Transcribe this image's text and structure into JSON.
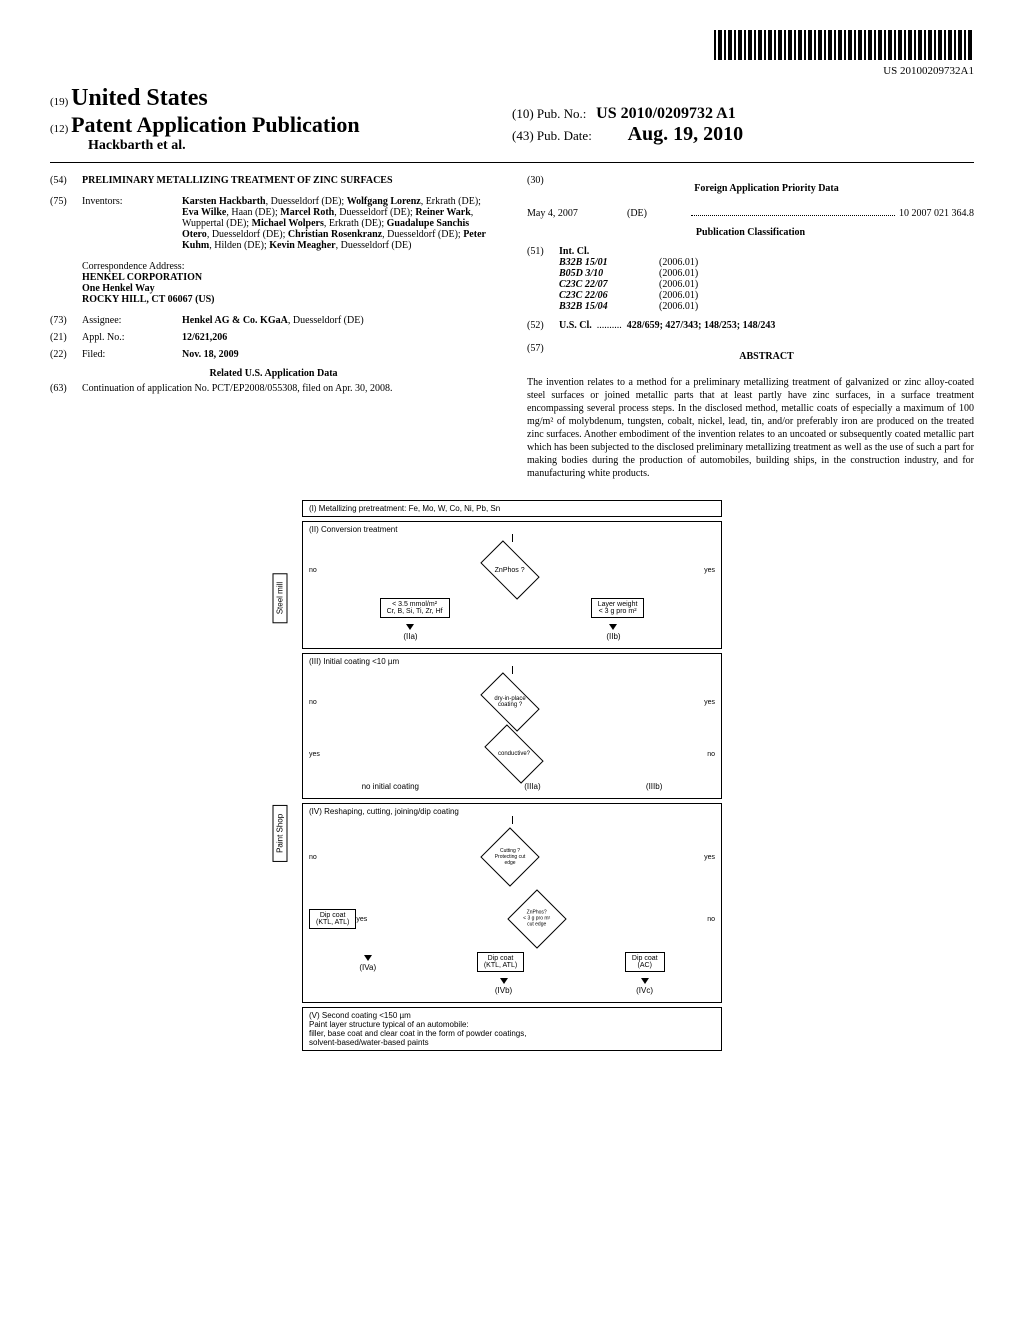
{
  "barcode_text": "US 20100209732A1",
  "country_code": "(19)",
  "country": "United States",
  "doc_code": "(12)",
  "doc_type": "Patent Application Publication",
  "author_line": "Hackbarth et al.",
  "pub_no_code": "(10)",
  "pub_no_label": "Pub. No.:",
  "pub_no": "US 2010/0209732 A1",
  "pub_date_code": "(43)",
  "pub_date_label": "Pub. Date:",
  "pub_date": "Aug. 19, 2010",
  "title_code": "(54)",
  "title": "PRELIMINARY METALLIZING TREATMENT OF ZINC SURFACES",
  "inventors_code": "(75)",
  "inventors_label": "Inventors:",
  "inventors": [
    {
      "name": "Karsten Hackbarth",
      "loc": "Duesseldorf (DE)"
    },
    {
      "name": "Wolfgang Lorenz",
      "loc": "Erkrath (DE)"
    },
    {
      "name": "Eva Wilke",
      "loc": "Haan (DE)"
    },
    {
      "name": "Marcel Roth",
      "loc": "Duesseldorf (DE)"
    },
    {
      "name": "Reiner Wark",
      "loc": "Wuppertal (DE)"
    },
    {
      "name": "Michael Wolpers",
      "loc": "Erkrath (DE)"
    },
    {
      "name": "Guadalupe Sanchis Otero",
      "loc": "Duesseldorf (DE)"
    },
    {
      "name": "Christian Rosenkranz",
      "loc": "Duesseldorf (DE)"
    },
    {
      "name": "Peter Kuhm",
      "loc": "Hilden (DE)"
    },
    {
      "name": "Kevin Meagher",
      "loc": "Duesseldorf (DE)"
    }
  ],
  "corr_label": "Correspondence Address:",
  "corr_name": "HENKEL CORPORATION",
  "corr_street": "One Henkel Way",
  "corr_city": "ROCKY HILL, CT 06067 (US)",
  "assignee_code": "(73)",
  "assignee_label": "Assignee:",
  "assignee": "Henkel AG & Co. KGaA",
  "assignee_loc": "Duesseldorf (DE)",
  "appl_code": "(21)",
  "appl_label": "Appl. No.:",
  "appl_no": "12/621,206",
  "filed_code": "(22)",
  "filed_label": "Filed:",
  "filed_date": "Nov. 18, 2009",
  "related_title": "Related U.S. Application Data",
  "related_code": "(63)",
  "related_text": "Continuation of application No. PCT/EP2008/055308, filed on Apr. 30, 2008.",
  "foreign_code": "(30)",
  "foreign_title": "Foreign Application Priority Data",
  "priority_date": "May 4, 2007",
  "priority_country": "(DE)",
  "priority_num": "10 2007 021 364.8",
  "pubclass_title": "Publication Classification",
  "int_code": "(51)",
  "int_label": "Int. Cl.",
  "int_classes": [
    {
      "code": "B32B 15/01",
      "year": "(2006.01)"
    },
    {
      "code": "B05D 3/10",
      "year": "(2006.01)"
    },
    {
      "code": "C23C 22/07",
      "year": "(2006.01)"
    },
    {
      "code": "C23C 22/06",
      "year": "(2006.01)"
    },
    {
      "code": "B32B 15/04",
      "year": "(2006.01)"
    }
  ],
  "us_code": "(52)",
  "us_label": "U.S. Cl.",
  "us_classes": "428/659; 427/343; 148/253; 148/243",
  "abstract_code": "(57)",
  "abstract_title": "ABSTRACT",
  "abstract_text": "The invention relates to a method for a preliminary metallizing treatment of galvanized or zinc alloy-coated steel surfaces or joined metallic parts that at least partly have zinc surfaces, in a surface treatment encompassing several process steps. In the disclosed method, metallic coats of especially a maximum of 100 mg/m² of molybdenum, tungsten, cobalt, nickel, lead, tin, and/or preferably iron are produced on the treated zinc surfaces. Another embodiment of the invention relates to an uncoated or subsequently coated metallic part which has been subjected to the disclosed preliminary metallizing treatment as well as the use of such a part for making bodies during the production of automobiles, building ships, in the construction industry, and for manufacturing white products.",
  "fc": {
    "step1": "(I) Metallizing pretreatment: Fe, Mo, W, Co, Ni, Pb, Sn",
    "step2": "(II) Conversion treatment",
    "znphos": "ZnPhos ?",
    "no": "no",
    "yes": "yes",
    "iia_text": "< 3.5 mmol/m²\nCr, B, Si, Ti, Zr, Hf",
    "iia": "(IIa)",
    "iib_text": "Layer weight\n< 3 g pro m²",
    "iib": "(IIb)",
    "step3": "(III) Initial coating <10 µm",
    "dryinplace": "dry-in-place coating ?",
    "conductive": "conductive?",
    "no_initial": "no initial coating",
    "iiia": "(IIIa)",
    "iiib": "(IIIb)",
    "step4": "(IV) Reshaping, cutting, joining/dip coating",
    "cutting": "Cutting ?\nProtecting cut edge",
    "znphos2": "ZnPhos?\n< 3 g pro m²\ncut edge",
    "dipcoat": "Dip coat\n(KTL, ATL)",
    "dipcoat_ac": "Dip coat\n(AC)",
    "iva": "(IVa)",
    "ivb": "(IVb)",
    "ivc": "(IVc)",
    "step5": "(V) Second coating <150 µm\nPaint layer structure typical of an automobile:\nfiller, base coat and clear coat in the form of powder coatings,\nsolvent-based/water-based paints",
    "side_steel": "Steel mill",
    "side_paint": "Paint Shop"
  }
}
